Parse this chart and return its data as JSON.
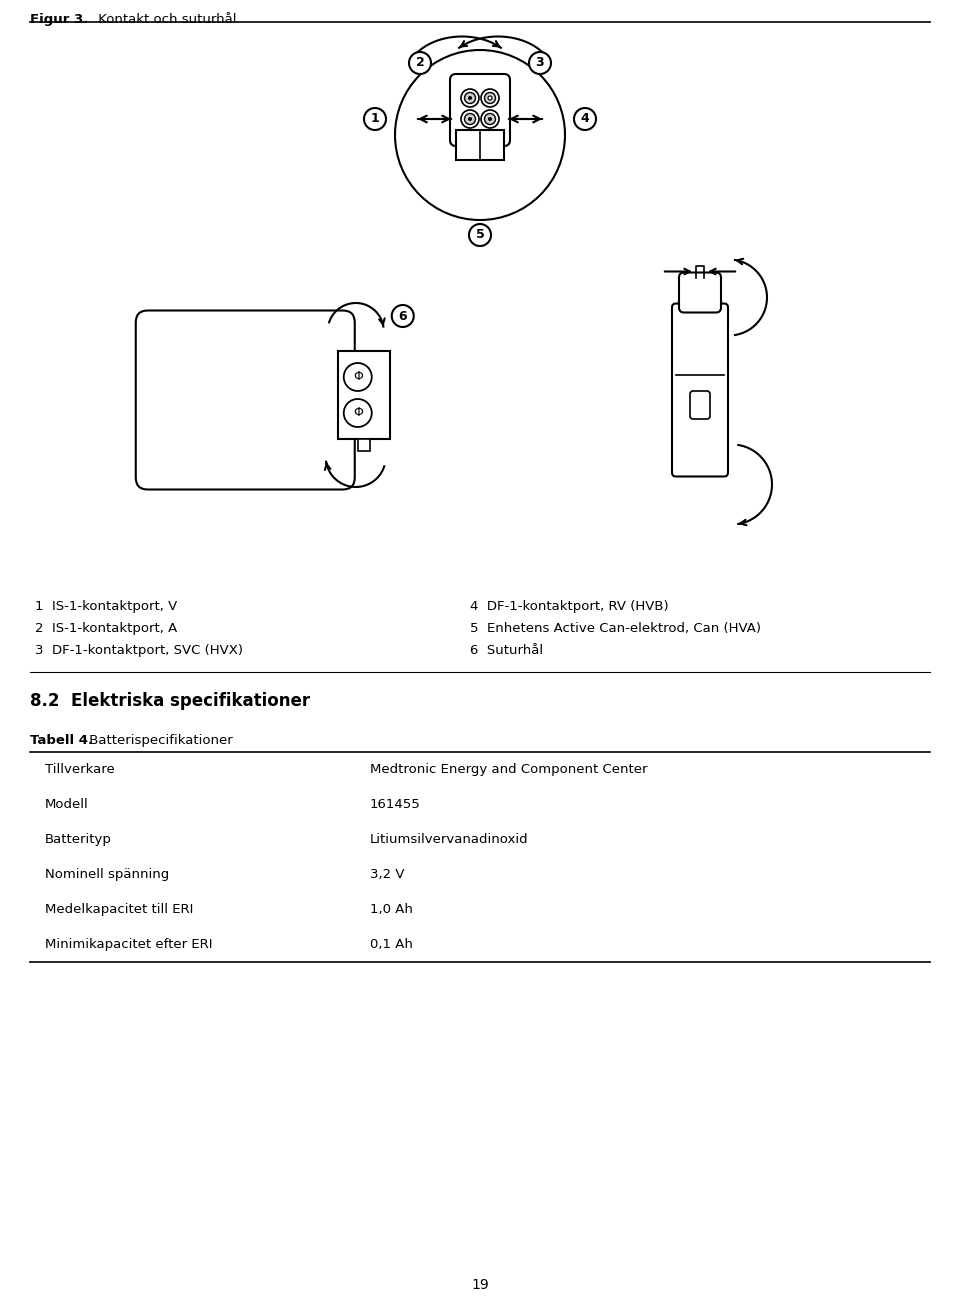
{
  "figure_title_bold": "Figur 3.",
  "figure_title_normal": " Kontakt och suturhål",
  "section_title": "8.2  Elektriska specifikationer",
  "table_caption_bold": "Tabell 4.",
  "table_caption_normal": " Batterispecifikationer",
  "legend_left": [
    "1  IS-1-kontaktport, V",
    "2  IS-1-kontaktport, A",
    "3  DF-1-kontaktport, SVC (HVX)"
  ],
  "legend_right": [
    "4  DF-1-kontaktport, RV (HVB)",
    "5  Enhetens Active Can-elektrod, Can (HVA)",
    "6  Suturhål"
  ],
  "table_rows": [
    [
      "Tillverkare",
      "Medtronic Energy and Component Center"
    ],
    [
      "Modell",
      "161455"
    ],
    [
      "Batterityp",
      "Litiumsilvervanadinoxid"
    ],
    [
      "Nominell spänning",
      "3,2 V"
    ],
    [
      "Medelkapacitet till ERI",
      "1,0 Ah"
    ],
    [
      "Minimikapacitet efter ERI",
      "0,1 Ah"
    ]
  ],
  "page_number": "19",
  "bg_color": "#ffffff",
  "text_color": "#000000"
}
